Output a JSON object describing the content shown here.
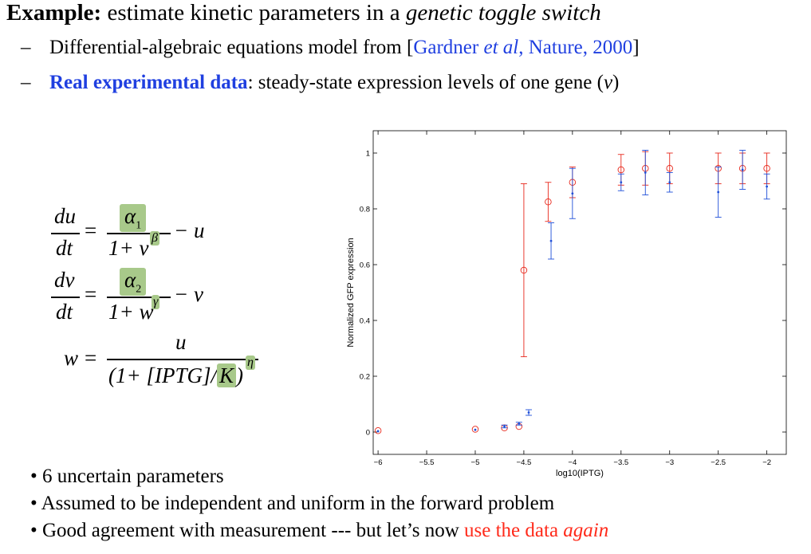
{
  "header": {
    "title_bold": "Example:",
    "title_plain": " estimate kinetic parameters in a ",
    "title_italic": "genetic toggle switch",
    "line1_pre": "Differential-algebraic equations model from [",
    "line1_ref_a": "Gardner ",
    "line1_ref_b": "et al",
    "line1_ref_c": ", Nature, 2000",
    "line1_post": "]",
    "line2_bold": "Real experimental data",
    "line2_rest": ": steady-state expression levels of one gene (",
    "line2_var": "v",
    "line2_close": ")",
    "dash": "–"
  },
  "equations": {
    "du": "du",
    "dt": "dt",
    "dv": "dv",
    "eq": "=",
    "minus_u": "− u",
    "minus_v": "− v",
    "alpha1": "α",
    "alpha1_sub": "1",
    "alpha2": "α",
    "alpha2_sub": "2",
    "den1": "1+ v",
    "beta": "β",
    "den2": "1+ w",
    "gamma": "γ",
    "w": "w",
    "u": "u",
    "den3_a": "(1+ [IPTG]/",
    "K": "K",
    "den3_b": ")",
    "eta": "η"
  },
  "bullets": [
    "• 6 uncertain parameters",
    "• Assumed to be independent and uniform in the forward problem",
    "• Good agreement with measurement --- but let’s now "
  ],
  "bullet3_red": "use the data ",
  "bullet3_red_italic": "again",
  "chart_data": {
    "type": "scatter",
    "xlabel": "log10(IPTG)",
    "ylabel": "Normalized GFP expression",
    "xlim": [
      -6.05,
      -1.8
    ],
    "ylim": [
      -0.08,
      1.08
    ],
    "xticks": [
      -6,
      -5.5,
      -5,
      -4.5,
      -4,
      -3.5,
      -3,
      -2.5,
      -2
    ],
    "xtick_labels": [
      "−6",
      "−5.5",
      "−5",
      "−4.5",
      "−4",
      "−3.5",
      "−3",
      "−2.5",
      "−2"
    ],
    "yticks": [
      0,
      0.2,
      0.4,
      0.6,
      0.8,
      1
    ],
    "ytick_labels": [
      "0",
      "0.2",
      "0.4",
      "0.6",
      "0.8",
      "1"
    ],
    "grid": false,
    "colors": {
      "model": "#e8281c",
      "data": "#1f4fd8"
    },
    "series": [
      {
        "marker": "circle",
        "color": "#e8281c",
        "x": [
          -6,
          -5,
          -4.7,
          -4.55,
          -4.5,
          -4.25,
          -4,
          -3.5,
          -3.25,
          -3,
          -2.5,
          -2.25,
          -2
        ],
        "y": [
          0.005,
          0.01,
          0.015,
          0.02,
          0.58,
          0.825,
          0.895,
          0.94,
          0.945,
          0.945,
          0.945,
          0.945,
          0.945
        ],
        "err": [
          0.0,
          0.0,
          0.0,
          0.0,
          0.31,
          0.07,
          0.055,
          0.055,
          0.06,
          0.055,
          0.055,
          0.055,
          0.055
        ]
      },
      {
        "marker": "dot",
        "color": "#1f4fd8",
        "x": [
          -6,
          -5,
          -4.7,
          -4.55,
          -4.45,
          -4.22,
          -4,
          -3.5,
          -3.25,
          -3,
          -2.5,
          -2.25,
          -2
        ],
        "y": [
          0.003,
          0.008,
          0.02,
          0.03,
          0.07,
          0.685,
          0.855,
          0.895,
          0.93,
          0.895,
          0.86,
          0.94,
          0.88
        ],
        "err": [
          0.0,
          0.0,
          0.005,
          0.005,
          0.01,
          0.065,
          0.09,
          0.03,
          0.08,
          0.035,
          0.09,
          0.07,
          0.045
        ]
      }
    ]
  }
}
